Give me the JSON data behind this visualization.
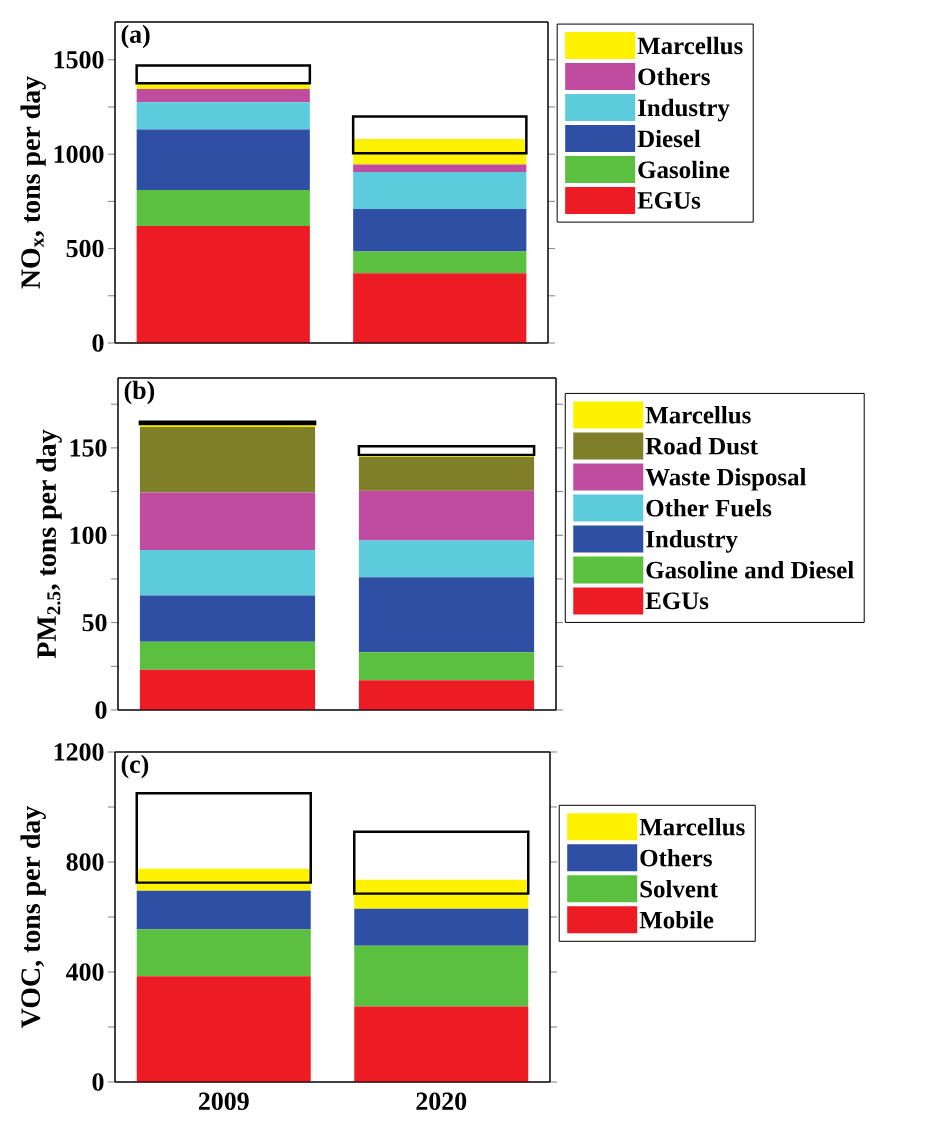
{
  "chart_data": [
    {
      "type": "bar",
      "stacked": true,
      "ylabel": "NO$_{x}$, tons per day",
      "annotations": [
        "(a)"
      ],
      "categories": [
        "2009",
        "2020"
      ],
      "ylim": [
        0,
        1700
      ],
      "yticks": [
        0,
        {
          "value": 250,
          "label": null
        },
        500,
        {
          "value": 750,
          "label": null
        },
        1000,
        {
          "value": 1250,
          "label": null
        },
        1500
      ],
      "tick_labels": "y",
      "legend": "right",
      "series": [
        {
          "name": "EGUs",
          "color": "#ed1c24",
          "values": [
            620,
            370
          ]
        },
        {
          "name": "Gasoline",
          "color": "#5bbf3f",
          "values": [
            190,
            115
          ]
        },
        {
          "name": "Diesel",
          "color": "#2e4fa3",
          "values": [
            320,
            225
          ]
        },
        {
          "name": "Industry",
          "color": "#5ccbdc",
          "values": [
            145,
            195
          ]
        },
        {
          "name": "Others",
          "color": "#c04ca0",
          "values": [
            70,
            40
          ]
        },
        {
          "name": "Marcellus",
          "color": "#fff200",
          "values": [
            30,
            135
          ]
        }
      ]
    },
    {
      "type": "bar",
      "categories": [
        null,
        null
      ],
      "ylim": [
        0,
        1700
      ],
      "tick_labels": false,
      "color": "#000000",
      "base": [
        1375,
        1005
      ],
      "values": [
        95,
        195
      ]
    },
    {
      "type": "bar",
      "stacked": true,
      "ylabel": "PM$_{2.5}$, tons per day",
      "annotations": [
        "(b)"
      ],
      "categories": [
        "2009",
        "2020"
      ],
      "ylim": [
        0,
        190
      ],
      "yticks": [
        0,
        {
          "value": 25,
          "label": null
        },
        50,
        {
          "value": 75,
          "label": null
        },
        100,
        {
          "value": 125,
          "label": null
        },
        150,
        {
          "value": 175,
          "label": null
        }
      ],
      "tick_labels": "y",
      "legend": "right",
      "series": [
        {
          "name": "EGUs",
          "color": "#ed1c24",
          "values": [
            23,
            17
          ]
        },
        {
          "name": "Gasoline and Diesel",
          "color": "#5bbf3f",
          "values": [
            16,
            16
          ]
        },
        {
          "name": "Industry",
          "color": "#2e4fa3",
          "values": [
            26.5,
            43
          ]
        },
        {
          "name": "Other Fuels",
          "color": "#5ccbdc",
          "values": [
            26,
            21
          ]
        },
        {
          "name": "Waste Disposal",
          "color": "#c04ca0",
          "values": [
            33,
            28.5
          ]
        },
        {
          "name": "Road Dust",
          "color": "#7f7f2a",
          "values": [
            37.5,
            19.5
          ]
        },
        {
          "name": "Marcellus",
          "color": "#fff200",
          "values": [
            1.5,
            1
          ]
        }
      ]
    },
    {
      "type": "bar",
      "categories": [
        null,
        null
      ],
      "ylim": [
        0,
        190
      ],
      "tick_labels": false,
      "color": "#000000",
      "base": [
        163.7,
        146
      ],
      "values": [
        1.3,
        5
      ]
    },
    {
      "type": "bar",
      "stacked": true,
      "ylabel": "VOC, tons per day",
      "annotations": [
        "(c)"
      ],
      "categories": [
        "2009",
        "2020"
      ],
      "ylim": [
        0,
        1200
      ],
      "yticks": [
        0,
        {
          "value": 200,
          "label": null
        },
        400,
        {
          "value": 600,
          "label": null
        },
        800,
        {
          "value": 1000,
          "label": null
        },
        1200
      ],
      "legend": "right",
      "series": [
        {
          "name": "Mobile",
          "color": "#ed1c24",
          "values": [
            385,
            275
          ]
        },
        {
          "name": "Solvent",
          "color": "#5bbf3f",
          "values": [
            170,
            220
          ]
        },
        {
          "name": "Others",
          "color": "#2e4fa3",
          "values": [
            140,
            135
          ]
        },
        {
          "name": "Marcellus",
          "color": "#fff200",
          "values": [
            80,
            105
          ]
        }
      ]
    },
    {
      "type": "bar",
      "categories": [
        null,
        null
      ],
      "ylim": [
        0,
        1200
      ],
      "tick_labels": false,
      "color": "#000000",
      "base": [
        725,
        685
      ],
      "values": [
        325,
        225
      ]
    }
  ]
}
